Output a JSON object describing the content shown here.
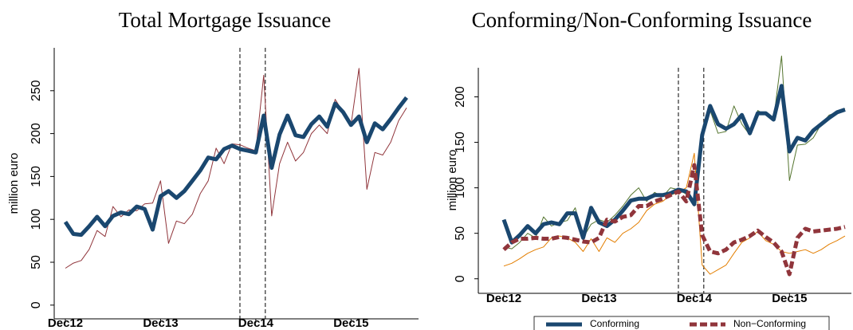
{
  "chart_data": [
    {
      "type": "line",
      "title": "Total Mortgage Issuance",
      "y_label": "million euro",
      "categories": [
        "Dec12",
        null,
        null,
        null,
        null,
        null,
        null,
        null,
        null,
        null,
        null,
        null,
        "Dec13",
        null,
        null,
        null,
        null,
        null,
        null,
        null,
        null,
        null,
        null,
        null,
        "Dec14",
        null,
        null,
        null,
        null,
        null,
        null,
        null,
        null,
        null,
        null,
        null,
        "Dec15",
        null,
        null,
        null,
        null,
        null,
        null,
        null
      ],
      "series": [
        {
          "color": "#90353b",
          "style": "thin",
          "values": [
            43,
            49,
            52,
            65,
            87,
            80,
            115,
            103,
            111,
            110,
            118,
            119,
            145,
            72,
            98,
            95,
            106,
            130,
            145,
            183,
            165,
            188,
            187,
            183,
            180,
            268,
            104,
            165,
            190,
            168,
            178,
            200,
            210,
            200,
            240,
            225,
            210,
            276,
            135,
            178,
            175,
            190,
            215,
            230
          ]
        },
        {
          "color": "#1a476f",
          "style": "thick",
          "values": [
            97,
            83,
            82,
            92,
            103,
            92,
            104,
            108,
            106,
            115,
            112,
            88,
            127,
            133,
            125,
            133,
            145,
            157,
            172,
            170,
            182,
            186,
            182,
            180,
            178,
            221,
            160,
            199,
            221,
            198,
            196,
            211,
            220,
            208,
            235,
            225,
            210,
            220,
            190,
            212,
            205,
            217,
            230,
            242
          ]
        }
      ],
      "ylim": [
        -16,
        300
      ],
      "yticks": [
        0,
        50,
        100,
        150,
        200,
        250
      ],
      "grid": false
    },
    {
      "type": "line",
      "title": "Conforming/Non-Conforming Issuance",
      "y_label": "million euro",
      "categories": [
        "Dec12",
        null,
        null,
        null,
        null,
        null,
        null,
        null,
        null,
        null,
        null,
        null,
        "Dec13",
        null,
        null,
        null,
        null,
        null,
        null,
        null,
        null,
        null,
        null,
        null,
        "Dec14",
        null,
        null,
        null,
        null,
        null,
        null,
        null,
        null,
        null,
        null,
        null,
        "Dec15",
        null,
        null,
        null,
        null,
        null,
        null,
        null
      ],
      "series": [
        {
          "color": "#55752f",
          "style": "thin",
          "values": [
            35,
            33,
            40,
            50,
            45,
            68,
            58,
            62,
            64,
            78,
            45,
            60,
            65,
            62,
            70,
            80,
            92,
            100,
            85,
            95,
            90,
            100,
            98,
            93,
            80,
            160,
            185,
            160,
            162,
            190,
            170,
            158,
            185,
            180,
            175,
            245,
            108,
            147,
            148,
            155,
            170,
            180,
            183,
            187
          ]
        },
        {
          "color": "#e37e00",
          "style": "thin",
          "values": [
            14,
            17,
            22,
            28,
            32,
            35,
            45,
            47,
            45,
            40,
            30,
            44,
            30,
            45,
            40,
            50,
            55,
            62,
            75,
            82,
            85,
            92,
            95,
            100,
            138,
            15,
            5,
            10,
            15,
            28,
            40,
            45,
            52,
            42,
            38,
            30,
            28,
            30,
            32,
            28,
            32,
            38,
            42,
            47
          ]
        },
        {
          "name": "Conforming",
          "color": "#1a476f",
          "style": "thick",
          "values": [
            65,
            40,
            48,
            58,
            50,
            60,
            62,
            60,
            72,
            72,
            45,
            78,
            62,
            58,
            65,
            75,
            86,
            88,
            88,
            92,
            92,
            94,
            98,
            96,
            82,
            158,
            190,
            170,
            165,
            170,
            180,
            160,
            182,
            182,
            175,
            212,
            140,
            155,
            152,
            163,
            170,
            177,
            183,
            186
          ]
        },
        {
          "name": "Non−Conforming",
          "color": "#90353b",
          "style": "thick-dashed",
          "values": [
            32,
            40,
            44,
            44,
            45,
            44,
            44,
            46,
            45,
            43,
            41,
            40,
            45,
            65,
            63,
            68,
            70,
            80,
            80,
            85,
            88,
            92,
            96,
            85,
            125,
            48,
            30,
            28,
            32,
            40,
            43,
            47,
            53,
            46,
            40,
            30,
            5,
            45,
            55,
            52,
            53,
            54,
            55,
            57
          ]
        }
      ],
      "ylim": [
        -16,
        232
      ],
      "yticks": [
        0,
        50,
        100,
        150,
        200
      ],
      "grid": false,
      "legend": "bottom"
    }
  ]
}
